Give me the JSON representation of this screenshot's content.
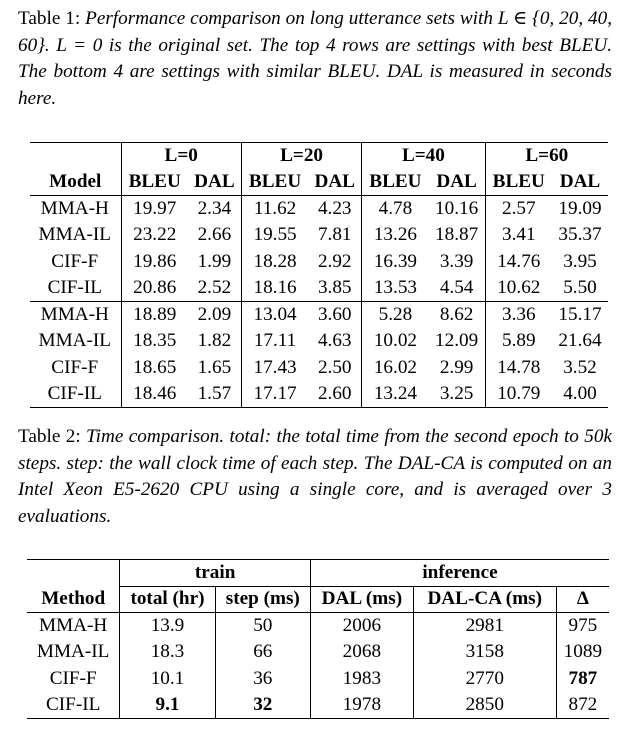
{
  "table1": {
    "caption_label": "Table 1:",
    "caption_text": "Performance comparison on long utterance sets with L ∈ {0, 20, 40, 60}.  L = 0 is the original set.  The top 4 rows are settings with best BLEU. The bottom 4 are settings with similar BLEU. DAL is measured in seconds here.",
    "groups": [
      "L=0",
      "L=20",
      "L=40",
      "L=60"
    ],
    "model_header": "Model",
    "sub_headers": [
      "BLEU",
      "DAL",
      "BLEU",
      "DAL",
      "BLEU",
      "DAL",
      "BLEU",
      "DAL"
    ],
    "rows_best_bleu": [
      [
        "MMA-H",
        "19.97",
        "2.34",
        "11.62",
        "4.23",
        "4.78",
        "10.16",
        "2.57",
        "19.09"
      ],
      [
        "MMA-IL",
        "23.22",
        "2.66",
        "19.55",
        "7.81",
        "13.26",
        "18.87",
        "3.41",
        "35.37"
      ],
      [
        "CIF-F",
        "19.86",
        "1.99",
        "18.28",
        "2.92",
        "16.39",
        "3.39",
        "14.76",
        "3.95"
      ],
      [
        "CIF-IL",
        "20.86",
        "2.52",
        "18.16",
        "3.85",
        "13.53",
        "4.54",
        "10.62",
        "5.50"
      ]
    ],
    "rows_similar_bleu": [
      [
        "MMA-H",
        "18.89",
        "2.09",
        "13.04",
        "3.60",
        "5.28",
        "8.62",
        "3.36",
        "15.17"
      ],
      [
        "MMA-IL",
        "18.35",
        "1.82",
        "17.11",
        "4.63",
        "10.02",
        "12.09",
        "5.89",
        "21.64"
      ],
      [
        "CIF-F",
        "18.65",
        "1.65",
        "17.43",
        "2.50",
        "16.02",
        "2.99",
        "14.78",
        "3.52"
      ],
      [
        "CIF-IL",
        "18.46",
        "1.57",
        "17.17",
        "2.60",
        "13.24",
        "3.25",
        "10.79",
        "4.00"
      ]
    ]
  },
  "table2": {
    "caption_label": "Table 2:",
    "caption_text": "Time comparison. total: the total time from the second epoch to 50k steps. step: the wall clock time of each step. The DAL-CA is computed on an Intel Xeon E5-2620 CPU using a single core, and is averaged over 3 evaluations.",
    "group_train": "train",
    "group_inference": "inference",
    "headers": [
      "Method",
      "total (hr)",
      "step (ms)",
      "DAL (ms)",
      "DAL-CA (ms)",
      "Δ"
    ],
    "rows": [
      [
        "MMA-H",
        "13.9",
        "50",
        "2006",
        "2981",
        "975"
      ],
      [
        "MMA-IL",
        "18.3",
        "66",
        "2068",
        "3158",
        "1089"
      ],
      [
        "CIF-F",
        "10.1",
        "36",
        "1983",
        "2770",
        "787"
      ],
      [
        "CIF-IL",
        "9.1",
        "32",
        "1978",
        "2850",
        "872"
      ]
    ]
  }
}
